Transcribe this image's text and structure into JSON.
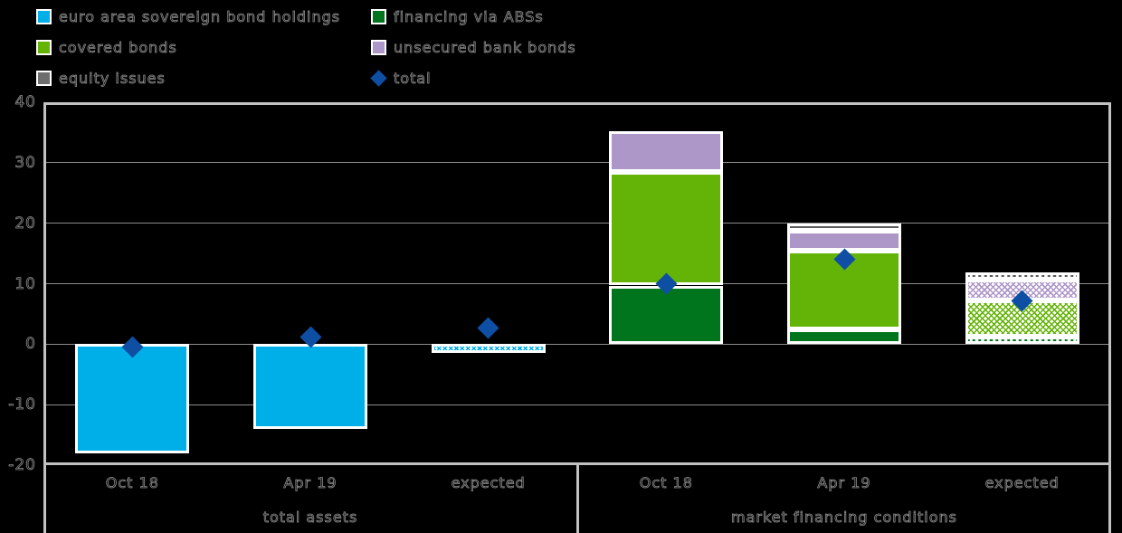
{
  "legend": {
    "items": [
      {
        "label": "euro area sovereign bond holdings",
        "color": "#00AEE8",
        "shape": "square"
      },
      {
        "label": "financing via ABSs",
        "color": "#00751E",
        "shape": "square"
      },
      {
        "label": "covered bonds",
        "color": "#64B408",
        "shape": "square"
      },
      {
        "label": "unsecured bank bonds",
        "color": "#AD96C8",
        "shape": "square"
      },
      {
        "label": "equity issues",
        "color": "#6E6E6E",
        "shape": "square"
      },
      {
        "label": "total",
        "color": "#0E4FA3",
        "shape": "diamond"
      }
    ]
  },
  "chart_data": {
    "type": "bar",
    "stacked": true,
    "title": "",
    "xlabel": "",
    "ylabel": "",
    "background_color": "#000000",
    "grid": true,
    "legend_position": "top-left",
    "ylim": [
      -20,
      40
    ],
    "y_ticks": [
      40,
      30,
      20,
      10,
      0,
      -10,
      -20
    ],
    "groups": [
      {
        "label": "total assets",
        "categories": [
          "Oct 18",
          "Apr 19",
          "expected"
        ]
      },
      {
        "label": "market financing conditions",
        "categories": [
          "Oct 18",
          "Apr 19",
          "expected"
        ]
      }
    ],
    "categories": [
      "Oct 18",
      "Apr 19",
      "expected",
      "Oct 18",
      "Apr 19",
      "expected"
    ],
    "hatched": [
      false,
      false,
      true,
      false,
      false,
      true
    ],
    "series": [
      {
        "name": "euro area sovereign bond holdings",
        "color": "#00AEE8",
        "values": [
          -18,
          -14,
          -1.5,
          0,
          0,
          0
        ]
      },
      {
        "name": "financing via ABSs",
        "color": "#00751E",
        "values": [
          0,
          0,
          0,
          9.7,
          2.5,
          1.2
        ]
      },
      {
        "name": "covered bonds",
        "color": "#64B408",
        "values": [
          0,
          0,
          0,
          18.8,
          13,
          6.1
        ]
      },
      {
        "name": "unsecured bank bonds",
        "color": "#AD96C8",
        "values": [
          0,
          0,
          0,
          6.7,
          3.3,
          3.3
        ]
      },
      {
        "name": "equity issues",
        "color": "#5A5A5A",
        "values": [
          0,
          0,
          0,
          0,
          1.2,
          1.3
        ]
      }
    ],
    "total_series": {
      "name": "total",
      "marker": "diamond",
      "color": "#0E4FA3",
      "values": [
        -0.5,
        1.2,
        2.6,
        10,
        14,
        7.1
      ]
    }
  }
}
